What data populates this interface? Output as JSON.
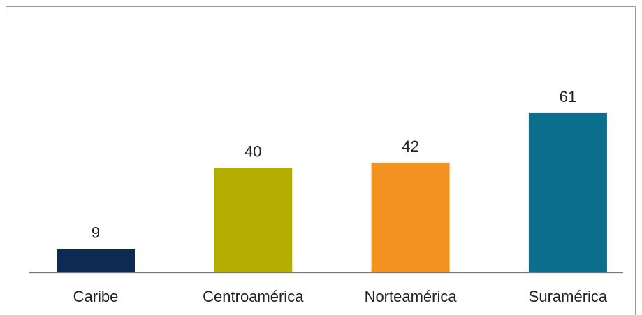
{
  "chart_data": {
    "type": "bar",
    "categories": [
      "Caribe",
      "Centroamérica",
      "Norteamérica",
      "Suramérica"
    ],
    "values": [
      9,
      40,
      42,
      61
    ],
    "colors": [
      "#0d2a52",
      "#b3ae00",
      "#f39220",
      "#0a6e8c"
    ],
    "grid": false,
    "legend": "none",
    "data_labels": true
  }
}
